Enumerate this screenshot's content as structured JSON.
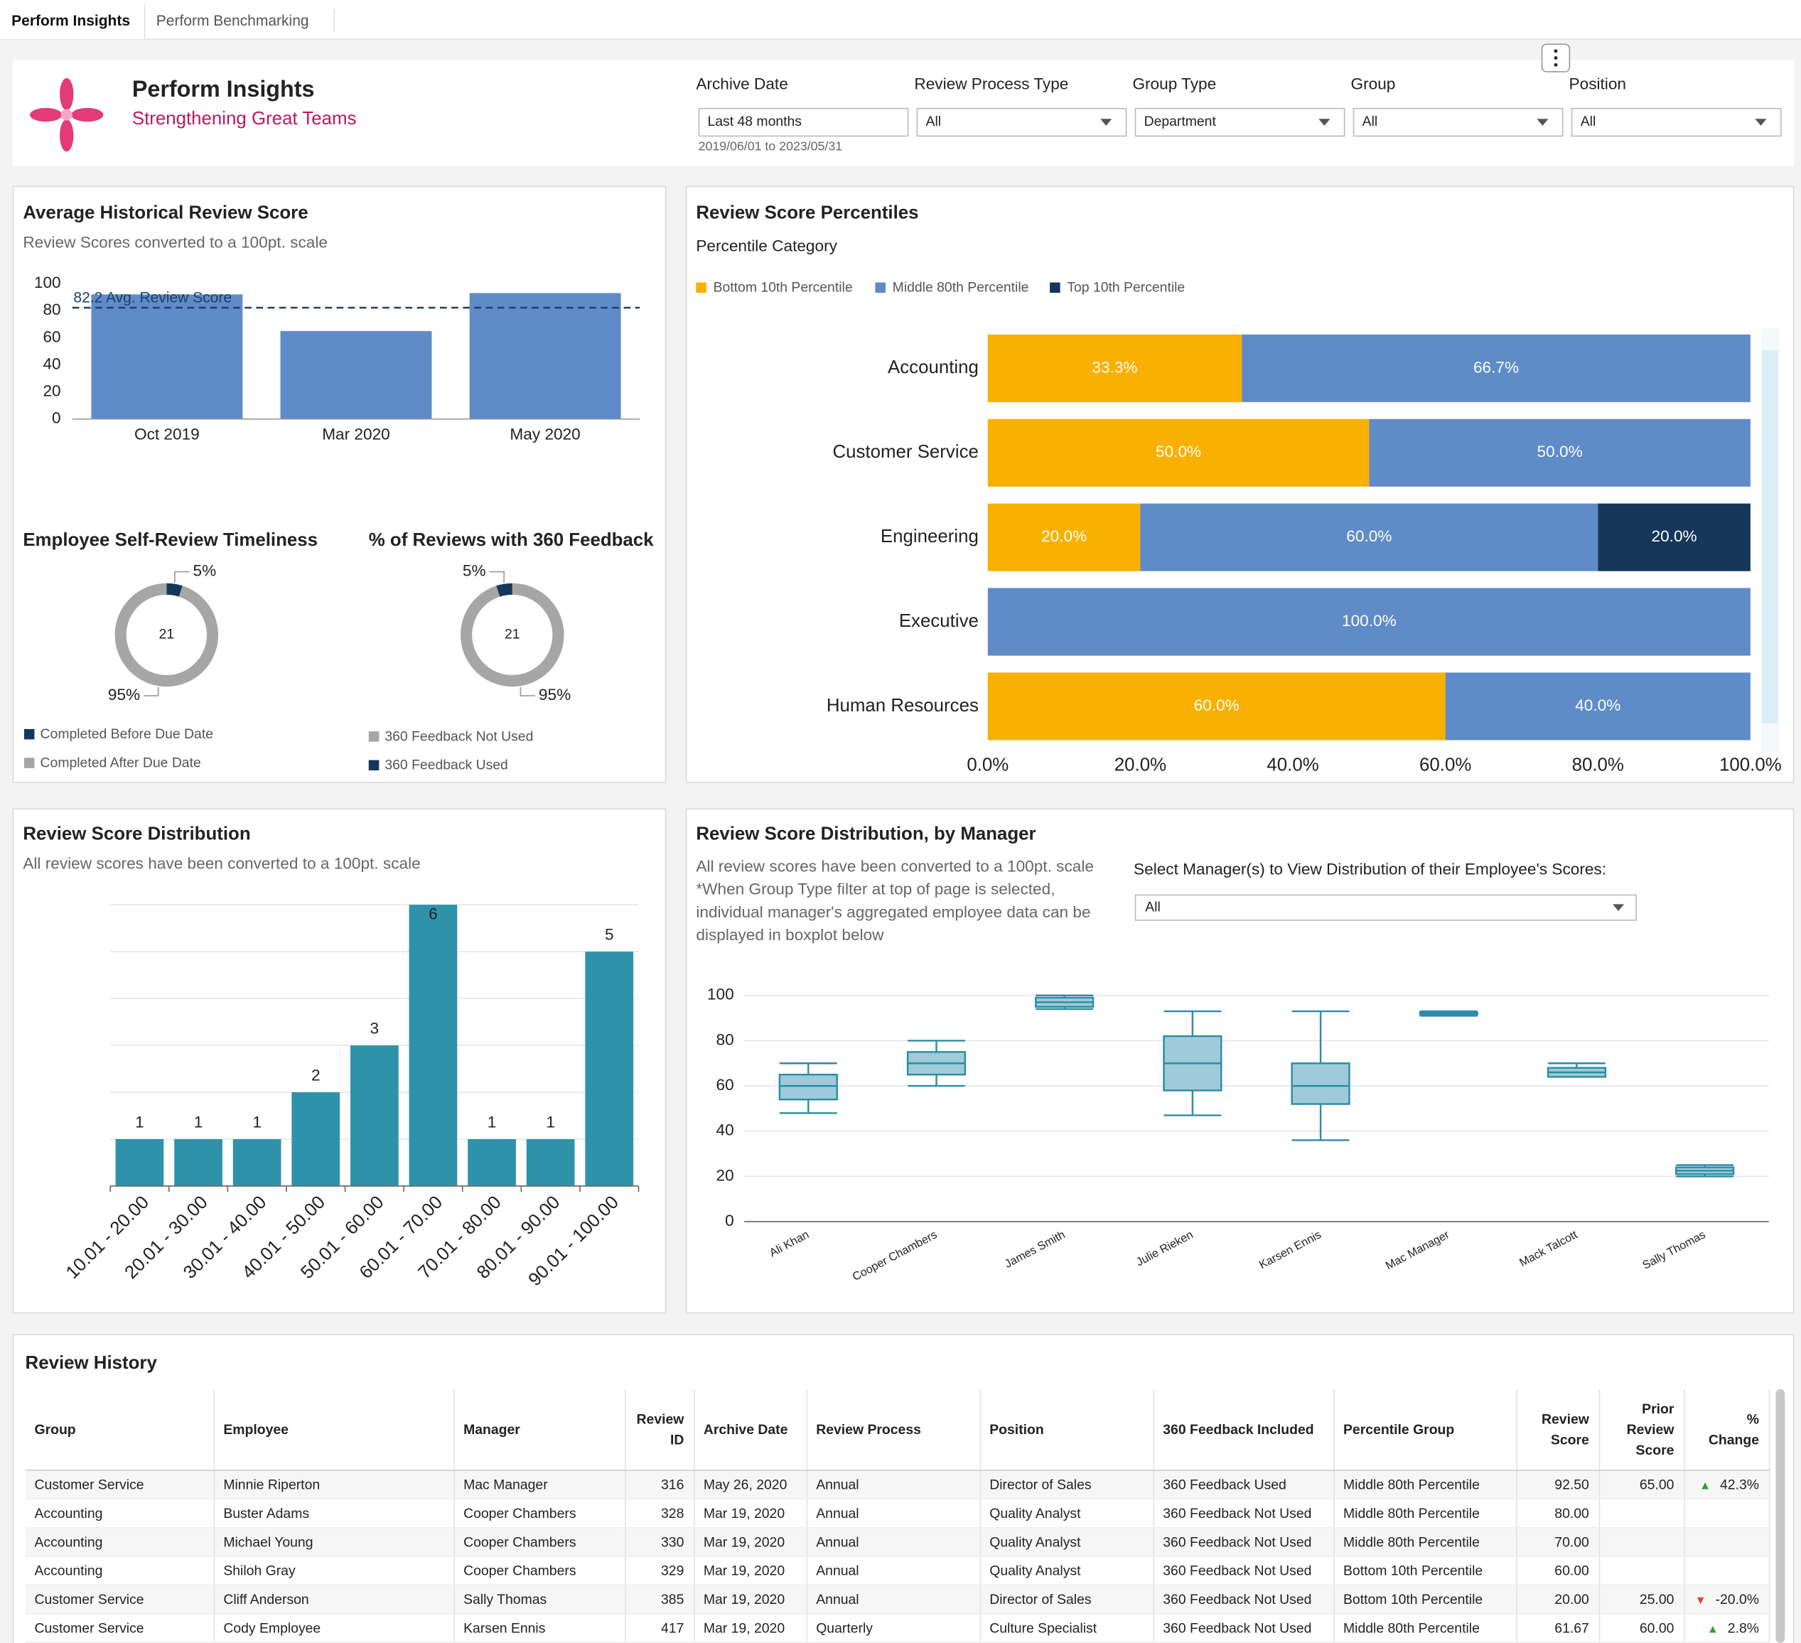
{
  "tabs": [
    "Perform Insights",
    "Perform Benchmarking"
  ],
  "header": {
    "title": "Perform Insights",
    "subtitle": "Strengthening Great Teams"
  },
  "filters": [
    {
      "label": "Archive Date",
      "value": "Last 48 months",
      "note": "2019/06/01 to 2023/05/31"
    },
    {
      "label": "Review Process Type",
      "value": "All"
    },
    {
      "label": "Group Type",
      "value": "Department"
    },
    {
      "label": "Group",
      "value": "All"
    },
    {
      "label": "Position",
      "value": "All"
    }
  ],
  "avg_score": {
    "type": "bar",
    "title": "Average Historical Review Score",
    "subtitle": "Review Scores converted to a 100pt. scale",
    "categories": [
      "Oct 2019",
      "Mar 2020",
      "May 2020"
    ],
    "values": [
      92,
      65,
      93
    ],
    "color": "#5f8bc8",
    "reference": {
      "value": 82.2,
      "label": "82.2 Avg. Review Score"
    },
    "ylim": [
      0,
      100
    ],
    "yticks": [
      0,
      20,
      40,
      60,
      80,
      100
    ]
  },
  "timeliness": {
    "type": "donut",
    "title": "Employee Self-Review Timeliness",
    "center": 21,
    "categories": [
      "Completed Before Due Date",
      "Completed After Due Date"
    ],
    "values": [
      5,
      95
    ],
    "value_labels": [
      "5%",
      "95%"
    ],
    "colors": [
      "#14375a",
      "#a6a6a6"
    ]
  },
  "feedback360": {
    "type": "donut",
    "title": "% of Reviews with 360 Feedback",
    "center": 21,
    "categories": [
      "360 Feedback Not Used",
      "360 Feedback Used"
    ],
    "values": [
      95,
      5
    ],
    "value_labels": [
      "95%",
      "5%"
    ],
    "colors": [
      "#a6a6a6",
      "#14375a"
    ]
  },
  "percentiles": {
    "type": "stacked_hbar",
    "title": "Review Score Percentiles",
    "legend_title": "Percentile Category",
    "categories": [
      "Accounting",
      "Customer Service",
      "Engineering",
      "Executive",
      "Human Resources"
    ],
    "series": [
      {
        "name": "Bottom 10th Percentile",
        "color": "#f9b000",
        "values": [
          33.3,
          50,
          20,
          null,
          60
        ],
        "value_labels": [
          "33.3%",
          "50.0%",
          "20.0%",
          null,
          "60.0%"
        ]
      },
      {
        "name": "Middle 80th Percentile",
        "color": "#5f8bc8",
        "values": [
          66.7,
          50,
          60,
          100,
          40
        ],
        "value_labels": [
          "66.7%",
          "50.0%",
          "60.0%",
          "100.0%",
          "40.0%"
        ]
      },
      {
        "name": "Top 10th Percentile",
        "color": "#14375a",
        "values": [
          null,
          null,
          20,
          null,
          null
        ],
        "value_labels": [
          null,
          null,
          "20.0%",
          null,
          null
        ]
      }
    ],
    "xlim": [
      0,
      100
    ],
    "xticks": [
      {
        "value": 0,
        "label": "0.0%"
      },
      {
        "value": 20,
        "label": "20.0%"
      },
      {
        "value": 40,
        "label": "40.0%"
      },
      {
        "value": 60,
        "label": "60.0%"
      },
      {
        "value": 80,
        "label": "80.0%"
      },
      {
        "value": 100,
        "label": "100.0%"
      }
    ]
  },
  "distribution": {
    "type": "bar",
    "title": "Review Score Distribution",
    "subtitle": "All review scores have been converted to a 100pt. scale",
    "categories": [
      "10.01 - 20.00",
      "20.01 - 30.00",
      "30.01 - 40.00",
      "40.01 - 50.00",
      "50.01 - 60.00",
      "60.01 - 70.00",
      "70.01 - 80.00",
      "80.01 - 90.00",
      "90.01 - 100.00"
    ],
    "values": [
      1,
      1,
      1,
      2,
      3,
      6,
      1,
      1,
      5
    ],
    "color": "#2e93aa",
    "ylim": [
      0,
      6
    ],
    "yticks": [
      0,
      1,
      2,
      3,
      4,
      5,
      6
    ],
    "grid": true
  },
  "by_manager": {
    "type": "boxplot",
    "title": "Review Score Distribution, by Manager",
    "subtitle": "All review scores have been converted to a 100pt. scale",
    "note": "*When Group Type filter at top of page is selected, individual manager's aggregated employee data can be displayed in boxplot below",
    "selector_label": "Select Manager(s) to View Distribution of their Employee's Scores:",
    "selector_value": "All",
    "categories": [
      "Ali Khan",
      "Cooper Chambers",
      "James Smith",
      "Julie Rieken",
      "Karsen Ennis",
      "Mac Manager",
      "Mack Talcott",
      "Sally Thomas"
    ],
    "boxes": [
      {
        "min": 48,
        "q1": 54,
        "median": 60,
        "q3": 65,
        "max": 70
      },
      {
        "min": 60,
        "q1": 65,
        "median": 70,
        "q3": 75,
        "max": 80
      },
      {
        "min": 94,
        "q1": 95,
        "median": 97,
        "q3": 99,
        "max": 100
      },
      {
        "min": 47,
        "q1": 58,
        "median": 70,
        "q3": 82,
        "max": 93
      },
      {
        "min": 36,
        "q1": 52,
        "median": 60,
        "q3": 70,
        "max": 93
      },
      {
        "min": 91,
        "q1": 91.5,
        "median": 92,
        "q3": 92.5,
        "max": 93
      },
      {
        "min": 64,
        "q1": 64,
        "median": 66,
        "q3": 68,
        "max": 70
      },
      {
        "min": 20,
        "q1": 21,
        "median": 22.5,
        "q3": 24,
        "max": 25
      }
    ],
    "fill": "#9fcbd8",
    "stroke": "#2b8ca6",
    "ylim": [
      0,
      100
    ],
    "yticks": [
      0,
      20,
      40,
      60,
      80,
      100
    ],
    "grid": true
  },
  "table": {
    "title": "Review History",
    "columns": [
      "Group",
      "Employee",
      "Manager",
      "Review ID",
      "Archive Date",
      "Review Process",
      "Position",
      "360 Feedback Included",
      "Percentile Group",
      "Review Score",
      "Prior Review Score",
      "% Change"
    ],
    "rows": [
      [
        "Customer Service",
        "Minnie Riperton",
        "Mac Manager",
        "316",
        "May 26, 2020",
        "Annual",
        "Director of Sales",
        "360 Feedback Used",
        "Middle 80th Percentile",
        "92.50",
        "65.00",
        "42.3%"
      ],
      [
        "Accounting",
        "Buster Adams",
        "Cooper Chambers",
        "328",
        "Mar 19, 2020",
        "Annual",
        "Quality Analyst",
        "360 Feedback Not Used",
        "Middle 80th Percentile",
        "80.00",
        null,
        null
      ],
      [
        "Accounting",
        "Michael Young",
        "Cooper Chambers",
        "330",
        "Mar 19, 2020",
        "Annual",
        "Quality Analyst",
        "360 Feedback Not Used",
        "Middle 80th Percentile",
        "70.00",
        null,
        null
      ],
      [
        "Accounting",
        "Shiloh Gray",
        "Cooper Chambers",
        "329",
        "Mar 19, 2020",
        "Annual",
        "Quality Analyst",
        "360 Feedback Not Used",
        "Bottom 10th Percentile",
        "60.00",
        null,
        null
      ],
      [
        "Customer Service",
        "Cliff Anderson",
        "Sally Thomas",
        "385",
        "Mar 19, 2020",
        "Annual",
        "Director of Sales",
        "360 Feedback Not Used",
        "Bottom 10th Percentile",
        "20.00",
        "25.00",
        "-20.0%"
      ],
      [
        "Customer Service",
        "Cody Employee",
        "Karsen Ennis",
        "417",
        "Mar 19, 2020",
        "Quarterly",
        "Culture Specialist",
        "360 Feedback Not Used",
        "Middle 80th Percentile",
        "61.67",
        "60.00",
        "2.8%"
      ]
    ]
  }
}
